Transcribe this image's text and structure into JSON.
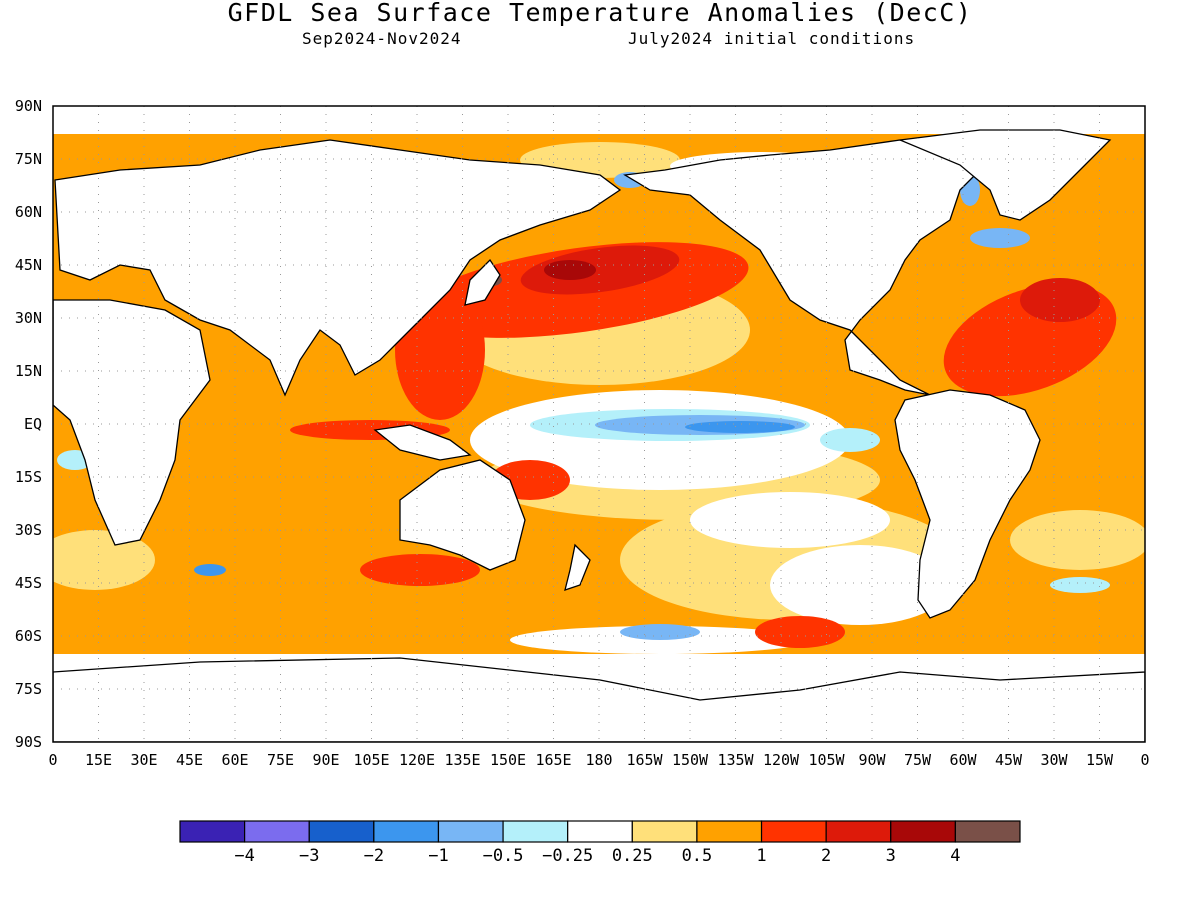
{
  "title": "GFDL Sea Surface Temperature Anomalies (DecC)",
  "subtitle_left": "Sep2024-Nov2024",
  "subtitle_right": "July2024 initial conditions",
  "y_labels": [
    {
      "lat": 90,
      "label": "90N"
    },
    {
      "lat": 75,
      "label": "75N"
    },
    {
      "lat": 60,
      "label": "60N"
    },
    {
      "lat": 45,
      "label": "45N"
    },
    {
      "lat": 30,
      "label": "30N"
    },
    {
      "lat": 15,
      "label": "15N"
    },
    {
      "lat": 0,
      "label": "EQ"
    },
    {
      "lat": -15,
      "label": "15S"
    },
    {
      "lat": -30,
      "label": "30S"
    },
    {
      "lat": -45,
      "label": "45S"
    },
    {
      "lat": -60,
      "label": "60S"
    },
    {
      "lat": -75,
      "label": "75S"
    },
    {
      "lat": -90,
      "label": "90S"
    }
  ],
  "x_labels": [
    {
      "lon": 0,
      "label": "0"
    },
    {
      "lon": 15,
      "label": "15E"
    },
    {
      "lon": 30,
      "label": "30E"
    },
    {
      "lon": 45,
      "label": "45E"
    },
    {
      "lon": 60,
      "label": "60E"
    },
    {
      "lon": 75,
      "label": "75E"
    },
    {
      "lon": 90,
      "label": "90E"
    },
    {
      "lon": 105,
      "label": "105E"
    },
    {
      "lon": 120,
      "label": "120E"
    },
    {
      "lon": 135,
      "label": "135E"
    },
    {
      "lon": 150,
      "label": "150E"
    },
    {
      "lon": 165,
      "label": "165E"
    },
    {
      "lon": 180,
      "label": "180"
    },
    {
      "lon": 195,
      "label": "165W"
    },
    {
      "lon": 210,
      "label": "150W"
    },
    {
      "lon": 225,
      "label": "135W"
    },
    {
      "lon": 240,
      "label": "120W"
    },
    {
      "lon": 255,
      "label": "105W"
    },
    {
      "lon": 270,
      "label": "90W"
    },
    {
      "lon": 285,
      "label": "75W"
    },
    {
      "lon": 300,
      "label": "60W"
    },
    {
      "lon": 315,
      "label": "45W"
    },
    {
      "lon": 330,
      "label": "30W"
    },
    {
      "lon": 345,
      "label": "15W"
    },
    {
      "lon": 360,
      "label": "0"
    }
  ],
  "colorbar": {
    "colors": [
      "#3a22b4",
      "#7b6cee",
      "#1760cc",
      "#3c96ee",
      "#78b6f5",
      "#b4f0fa",
      "#ffffff",
      "#ffe07a",
      "#ffa100",
      "#ff3300",
      "#dd1a0a",
      "#a80808",
      "#7a5048"
    ],
    "labels": [
      "-4",
      "-3",
      "-2",
      "-1",
      "-0.5",
      "-0.25",
      "0.25",
      "0.5",
      "1",
      "2",
      "3",
      "4"
    ]
  },
  "palette": {
    "ocean_warm": "#ffa100",
    "ocean_light": "#ffe07a",
    "hot": "#ff3300",
    "hotter": "#dd1a0a",
    "hottest": "#a80808",
    "peak": "#7a5048",
    "cool": "#b4f0fa",
    "cooler": "#78b6f5",
    "coolest": "#3c96ee"
  }
}
